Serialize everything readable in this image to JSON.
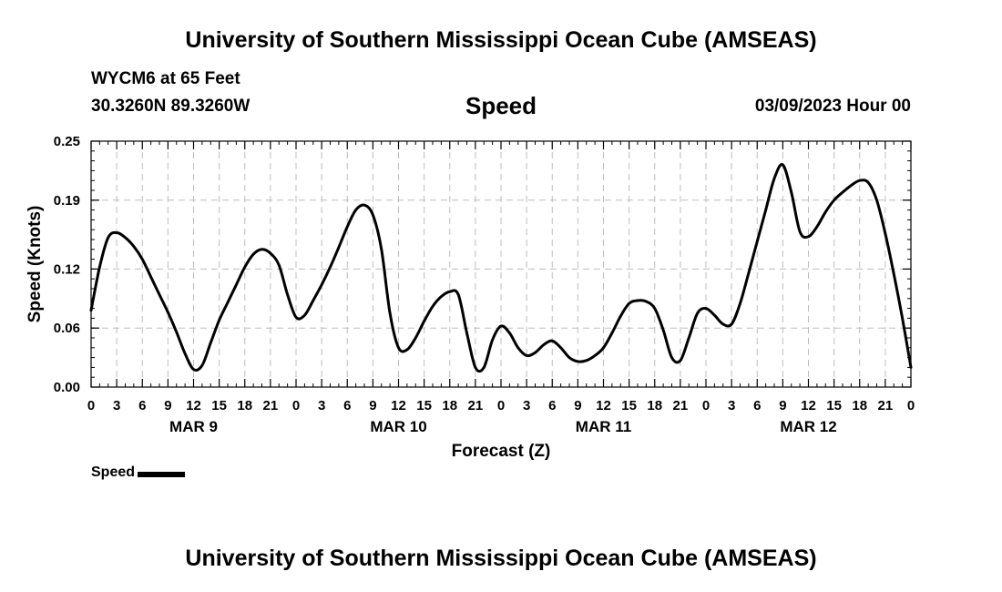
{
  "header": {
    "title": "University of Southern Mississippi Ocean Cube (AMSEAS)",
    "station": "WYCM6 at 65 Feet",
    "coords": "30.3260N  89.3260W",
    "chart_title": "Speed",
    "datetime": "03/09/2023 Hour 00"
  },
  "footer": {
    "title": "University of Southern Mississippi Ocean Cube (AMSEAS)"
  },
  "legend": {
    "label": "Speed",
    "color": "#000000"
  },
  "chart_data": {
    "type": "line",
    "title": "Speed",
    "xlabel": "Forecast (Z)",
    "ylabel": "Speed (Knots)",
    "x_unit": "forecast hour",
    "xlim": [
      0,
      96
    ],
    "ylim": [
      0,
      0.25
    ],
    "grid": true,
    "y_ticks": [
      0.0,
      0.06,
      0.12,
      0.19,
      0.25
    ],
    "y_tick_labels": [
      "0.00",
      "0.06",
      "0.12",
      "0.19",
      "0.25"
    ],
    "x_ticks": [
      0,
      3,
      6,
      9,
      12,
      15,
      18,
      21,
      24,
      27,
      30,
      33,
      36,
      39,
      42,
      45,
      48,
      51,
      54,
      57,
      60,
      63,
      66,
      69,
      72,
      75,
      78,
      81,
      84,
      87,
      90,
      93,
      96
    ],
    "x_tick_labels": [
      "0",
      "3",
      "6",
      "9",
      "12",
      "15",
      "18",
      "21",
      "0",
      "3",
      "6",
      "9",
      "12",
      "15",
      "18",
      "21",
      "0",
      "3",
      "6",
      "9",
      "12",
      "15",
      "18",
      "21",
      "0",
      "3",
      "6",
      "9",
      "12",
      "15",
      "18",
      "21",
      "0"
    ],
    "date_labels": [
      {
        "label": "MAR 9",
        "hour": 12
      },
      {
        "label": "MAR 10",
        "hour": 36
      },
      {
        "label": "MAR 11",
        "hour": 60
      },
      {
        "label": "MAR 12",
        "hour": 84
      }
    ],
    "series": [
      {
        "name": "Speed",
        "x": [
          0,
          1,
          2,
          3,
          4,
          5,
          6,
          7,
          8,
          9,
          10,
          11,
          12,
          13,
          14,
          15,
          16,
          17,
          18,
          19,
          20,
          21,
          22,
          23,
          24,
          25,
          26,
          27,
          28,
          29,
          30,
          31,
          32,
          33,
          34,
          35,
          36,
          37,
          38,
          39,
          40,
          41,
          42,
          43,
          44,
          45,
          46,
          47,
          48,
          49,
          50,
          51,
          52,
          53,
          54,
          55,
          56,
          57,
          58,
          59,
          60,
          61,
          62,
          63,
          64,
          65,
          66,
          67,
          68,
          69,
          70,
          71,
          72,
          73,
          74,
          75,
          76,
          77,
          78,
          79,
          80,
          81,
          82,
          83,
          84,
          85,
          86,
          87,
          88,
          89,
          90,
          91,
          92,
          93,
          94,
          95,
          96
        ],
        "y": [
          0.078,
          0.122,
          0.152,
          0.157,
          0.152,
          0.143,
          0.13,
          0.112,
          0.094,
          0.076,
          0.056,
          0.034,
          0.018,
          0.022,
          0.045,
          0.068,
          0.086,
          0.104,
          0.122,
          0.135,
          0.14,
          0.136,
          0.124,
          0.094,
          0.071,
          0.073,
          0.088,
          0.104,
          0.122,
          0.142,
          0.163,
          0.18,
          0.185,
          0.175,
          0.14,
          0.075,
          0.04,
          0.038,
          0.05,
          0.067,
          0.082,
          0.092,
          0.097,
          0.094,
          0.055,
          0.02,
          0.02,
          0.048,
          0.062,
          0.055,
          0.04,
          0.032,
          0.035,
          0.043,
          0.047,
          0.04,
          0.03,
          0.026,
          0.027,
          0.032,
          0.04,
          0.055,
          0.072,
          0.085,
          0.088,
          0.087,
          0.08,
          0.058,
          0.03,
          0.027,
          0.05,
          0.075,
          0.08,
          0.073,
          0.064,
          0.064,
          0.085,
          0.116,
          0.148,
          0.18,
          0.212,
          0.226,
          0.198,
          0.158,
          0.153,
          0.163,
          0.178,
          0.19,
          0.198,
          0.205,
          0.21,
          0.208,
          0.19,
          0.156,
          0.115,
          0.07,
          0.02
        ]
      }
    ]
  }
}
